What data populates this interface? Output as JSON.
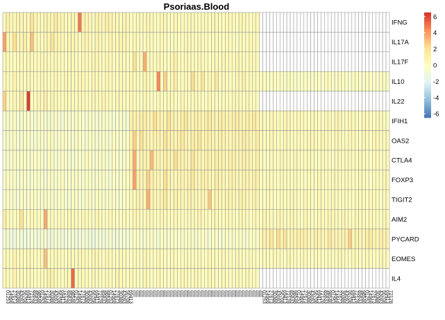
{
  "chart_data": {
    "type": "heatmap",
    "title": "Psoriaas.Blood",
    "rows": [
      "IFNG",
      "IL17A",
      "IL17F",
      "IL10",
      "IL22",
      "IFIH1",
      "OAS2",
      "CTLA4",
      "FOXP3",
      "TIGIT2",
      "AIM2",
      "PYCARD",
      "EOMES",
      "IL4"
    ],
    "legend": {
      "ticks": [
        6,
        4,
        2,
        0,
        -2,
        -4,
        -6
      ],
      "range": [
        -6.5,
        6.5
      ],
      "colors": [
        "#4575b4",
        "#91bfdb",
        "#e0f3f8",
        "#ffffbf",
        "#fee090",
        "#fc8d59",
        "#d73027"
      ],
      "position": "right"
    },
    "column_groups": [
      {
        "count": 37,
        "label_glyphs": "0123456789"
      },
      {
        "count": 38,
        "label_glyphs": "//////////////////////////"
      },
      {
        "count": 38,
        "label_glyphs": "0123456789"
      }
    ],
    "group_defaults": [
      [
        0.5,
        0.5,
        0.3,
        0.3,
        0.3,
        -0.4,
        -0.3,
        -0.3,
        -0.3,
        -0.3,
        0.2,
        -0.8,
        0.3,
        0.3
      ],
      [
        0.3,
        0.2,
        0.3,
        0.3,
        0.2,
        0.9,
        0.8,
        0.8,
        0.7,
        0.6,
        0.3,
        -0.3,
        0.2,
        0.2
      ],
      [
        null,
        null,
        null,
        -0.1,
        null,
        0.3,
        0.3,
        0.2,
        0.2,
        0.2,
        0.3,
        0.7,
        0.2,
        null
      ]
    ],
    "highlights": [
      [
        0,
        22,
        4.8
      ],
      [
        0,
        8,
        1.8
      ],
      [
        0,
        15,
        1.5
      ],
      [
        0,
        30,
        1.2
      ],
      [
        0,
        1,
        1.0
      ],
      [
        1,
        0,
        3.8
      ],
      [
        1,
        8,
        3.0
      ],
      [
        1,
        3,
        2.0
      ],
      [
        1,
        14,
        1.7
      ],
      [
        1,
        6,
        1.2
      ],
      [
        2,
        41,
        3.5
      ],
      [
        2,
        38,
        2.0
      ],
      [
        2,
        50,
        1.0
      ],
      [
        3,
        45,
        4.5
      ],
      [
        3,
        47,
        2.5
      ],
      [
        3,
        55,
        2.2
      ],
      [
        3,
        58,
        1.8
      ],
      [
        3,
        62,
        1.5
      ],
      [
        3,
        50,
        1.2
      ],
      [
        3,
        70,
        1.0
      ],
      [
        4,
        7,
        6.2
      ],
      [
        4,
        0,
        2.5
      ],
      [
        4,
        5,
        1.5
      ],
      [
        4,
        12,
        1.0
      ],
      [
        5,
        44,
        2.2
      ],
      [
        5,
        48,
        1.8
      ],
      [
        5,
        53,
        1.6
      ],
      [
        5,
        60,
        1.4
      ],
      [
        5,
        73,
        1.5
      ],
      [
        5,
        68,
        1.2
      ],
      [
        6,
        38,
        2.6
      ],
      [
        6,
        40,
        2.0
      ],
      [
        6,
        47,
        1.8
      ],
      [
        6,
        52,
        1.5
      ],
      [
        6,
        57,
        1.6
      ],
      [
        7,
        38,
        3.6
      ],
      [
        7,
        43,
        3.2
      ],
      [
        7,
        50,
        2.0
      ],
      [
        7,
        55,
        1.8
      ],
      [
        8,
        38,
        3.8
      ],
      [
        8,
        42,
        2.5
      ],
      [
        8,
        47,
        2.0
      ],
      [
        8,
        55,
        1.5
      ],
      [
        8,
        62,
        1.2
      ],
      [
        9,
        42,
        3.5
      ],
      [
        9,
        60,
        2.8
      ],
      [
        9,
        47,
        1.5
      ],
      [
        10,
        12,
        3.6
      ],
      [
        10,
        5,
        1.8
      ],
      [
        10,
        0,
        1.2
      ],
      [
        11,
        101,
        2.6
      ],
      [
        11,
        80,
        2.2
      ],
      [
        11,
        82,
        1.8
      ],
      [
        11,
        78,
        1.6
      ],
      [
        11,
        95,
        1.5
      ],
      [
        11,
        107,
        1.5
      ],
      [
        11,
        86,
        1.2
      ],
      [
        12,
        12,
        3.0
      ],
      [
        13,
        20,
        5.2
      ],
      [
        13,
        13,
        1.0
      ]
    ]
  }
}
